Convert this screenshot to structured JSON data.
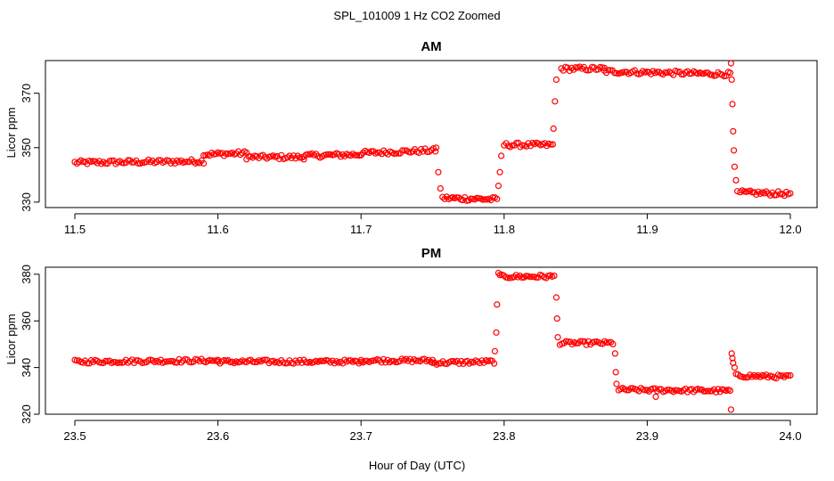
{
  "figure": {
    "suptitle": "SPL_101009  1 Hz CO2 Zoomed",
    "xlabel": "Hour of Day (UTC)"
  },
  "chart_data": [
    {
      "type": "scatter",
      "title": "AM",
      "xlabel": "Hour of Day (UTC)",
      "ylabel": "Licor ppm",
      "xlim": [
        11.5,
        12.0
      ],
      "ylim": [
        328,
        382
      ],
      "xticks": [
        "11.5",
        "11.6",
        "11.7",
        "11.8",
        "11.9",
        "12.0"
      ],
      "yticks": [
        "330",
        "350",
        "370"
      ],
      "marker_color": "#ff0000",
      "marker": "open-circle",
      "grid": false,
      "segments": [
        {
          "x0": 11.5,
          "x1": 11.59,
          "y0": 344.5,
          "y1": 345.0
        },
        {
          "x0": 11.59,
          "x1": 11.62,
          "y0": 347.5,
          "y1": 348.0
        },
        {
          "x0": 11.62,
          "x1": 11.66,
          "y0": 346.5,
          "y1": 346.5
        },
        {
          "x0": 11.66,
          "x1": 11.7,
          "y0": 347.0,
          "y1": 347.5
        },
        {
          "x0": 11.7,
          "x1": 11.752,
          "y0": 348.0,
          "y1": 349.0
        },
        {
          "x0": 11.757,
          "x1": 11.795,
          "y0": 331.5,
          "y1": 331.0
        },
        {
          "x0": 11.8,
          "x1": 11.834,
          "y0": 351.0,
          "y1": 351.0
        },
        {
          "x0": 11.84,
          "x1": 11.87,
          "y0": 379.0,
          "y1": 379.0
        },
        {
          "x0": 11.87,
          "x1": 11.958,
          "y0": 378.0,
          "y1": 377.0
        },
        {
          "x0": 11.965,
          "x1": 12.0,
          "y0": 333.5,
          "y1": 333.0
        }
      ],
      "transitions": [
        {
          "x": 11.7525,
          "y": 350.0
        },
        {
          "x": 11.754,
          "y": 341.0
        },
        {
          "x": 11.7555,
          "y": 335.0
        },
        {
          "x": 11.796,
          "y": 336.0
        },
        {
          "x": 11.797,
          "y": 341.0
        },
        {
          "x": 11.798,
          "y": 347.0
        },
        {
          "x": 11.8345,
          "y": 357.0
        },
        {
          "x": 11.8355,
          "y": 367.0
        },
        {
          "x": 11.8365,
          "y": 375.0
        },
        {
          "x": 11.9585,
          "y": 381.0
        },
        {
          "x": 11.959,
          "y": 375.0
        },
        {
          "x": 11.9595,
          "y": 366.0
        },
        {
          "x": 11.96,
          "y": 356.0
        },
        {
          "x": 11.9605,
          "y": 349.0
        },
        {
          "x": 11.961,
          "y": 343.0
        },
        {
          "x": 11.962,
          "y": 338.0
        },
        {
          "x": 11.963,
          "y": 334.0
        }
      ]
    },
    {
      "type": "scatter",
      "title": "PM",
      "xlabel": "Hour of Day (UTC)",
      "ylabel": "Licor ppm",
      "xlim": [
        23.5,
        24.0
      ],
      "ylim": [
        320,
        383
      ],
      "xticks": [
        "23.5",
        "23.6",
        "23.7",
        "23.8",
        "23.9",
        "24.0"
      ],
      "yticks": [
        "320",
        "340",
        "360",
        "380"
      ],
      "marker_color": "#ff0000",
      "marker": "open-circle",
      "grid": false,
      "segments": [
        {
          "x0": 23.5,
          "x1": 23.6,
          "y0": 342.5,
          "y1": 343.0
        },
        {
          "x0": 23.6,
          "x1": 23.7,
          "y0": 342.5,
          "y1": 342.5
        },
        {
          "x0": 23.7,
          "x1": 23.75,
          "y0": 343.0,
          "y1": 343.0
        },
        {
          "x0": 23.75,
          "x1": 23.793,
          "y0": 342.0,
          "y1": 342.5
        },
        {
          "x0": 23.797,
          "x1": 23.835,
          "y0": 379.0,
          "y1": 379.0
        },
        {
          "x0": 23.839,
          "x1": 23.876,
          "y0": 350.5,
          "y1": 350.5
        },
        {
          "x0": 23.88,
          "x1": 23.958,
          "y0": 330.5,
          "y1": 330.0
        },
        {
          "x0": 23.962,
          "x1": 24.0,
          "y0": 336.5,
          "y1": 336.0
        }
      ],
      "transitions": [
        {
          "x": 23.7935,
          "y": 347.0
        },
        {
          "x": 23.7945,
          "y": 355.0
        },
        {
          "x": 23.795,
          "y": 367.0
        },
        {
          "x": 23.796,
          "y": 380.5
        },
        {
          "x": 23.8365,
          "y": 370.0
        },
        {
          "x": 23.837,
          "y": 361.0
        },
        {
          "x": 23.8375,
          "y": 353.0
        },
        {
          "x": 23.8775,
          "y": 346.0
        },
        {
          "x": 23.878,
          "y": 338.0
        },
        {
          "x": 23.8785,
          "y": 333.0
        },
        {
          "x": 23.9585,
          "y": 322.0
        },
        {
          "x": 23.959,
          "y": 346.0
        },
        {
          "x": 23.9595,
          "y": 344.0
        },
        {
          "x": 23.96,
          "y": 342.0
        },
        {
          "x": 23.961,
          "y": 340.0
        },
        {
          "x": 23.906,
          "y": 327.5
        }
      ]
    }
  ]
}
